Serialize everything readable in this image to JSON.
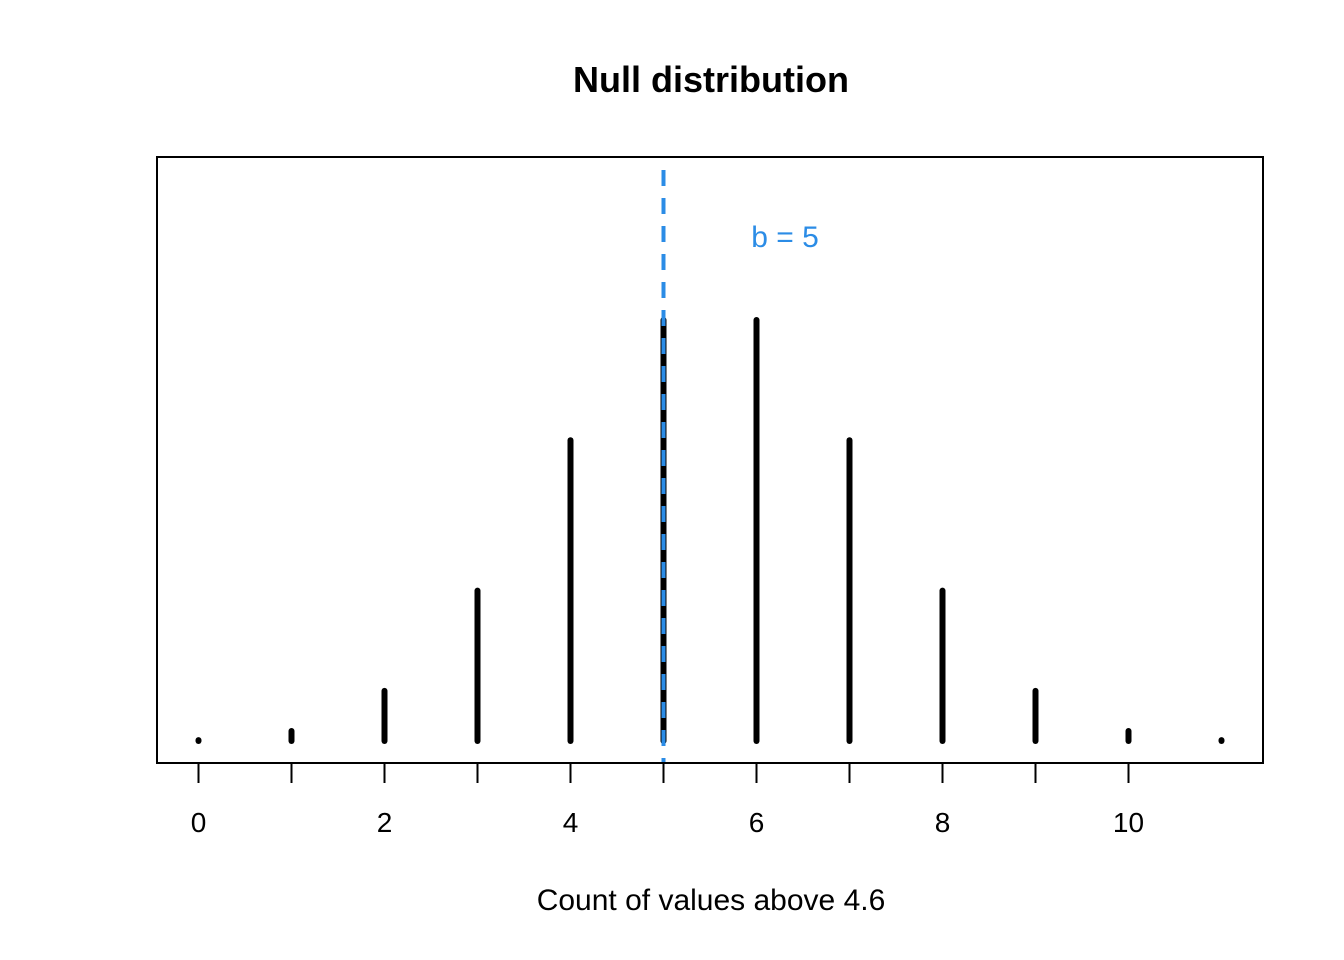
{
  "chart_data": {
    "type": "bar",
    "subtype": "pmf-spikes",
    "title": "Null distribution",
    "xlabel": "Count of values above 4.6",
    "ylabel": "",
    "x": [
      0,
      1,
      2,
      3,
      4,
      5,
      6,
      7,
      8,
      9,
      10,
      11
    ],
    "values": [
      1,
      11,
      55,
      165,
      330,
      462,
      462,
      330,
      165,
      55,
      11,
      1
    ],
    "xlim": [
      0,
      11
    ],
    "ylim": [
      0,
      462
    ],
    "x_ticks": [
      0,
      2,
      4,
      6,
      8,
      10
    ],
    "y_axis_shown": false,
    "grid": false,
    "bar_color": "#000000",
    "reference_line": {
      "x": 5,
      "style": "dashed",
      "color": "#2B8CE6",
      "label": "b = 5"
    }
  }
}
